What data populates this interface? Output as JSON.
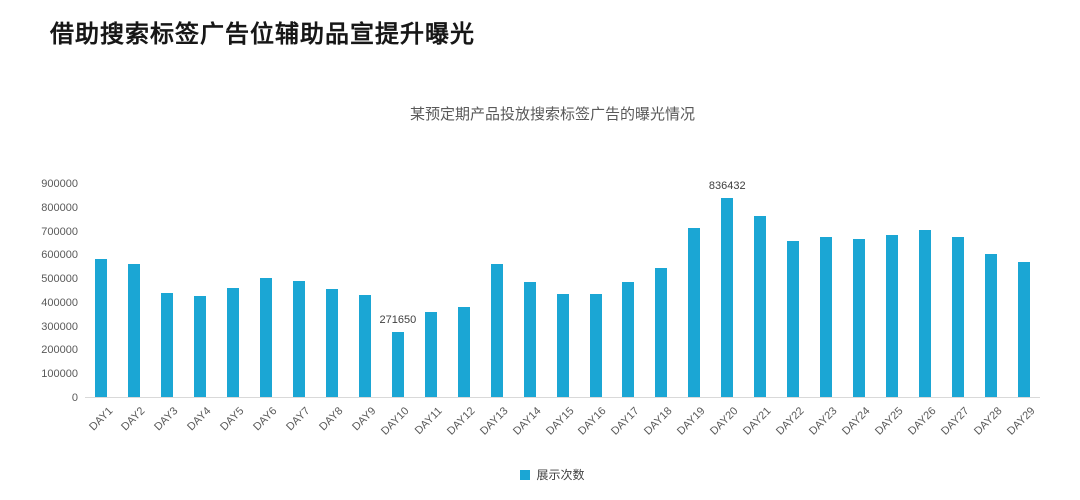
{
  "page": {
    "title": "借助搜索标签广告位辅助品宣提升曝光"
  },
  "chart_data": {
    "type": "bar",
    "title": "某预定期产品投放搜索标签广告的曝光情况",
    "categories": [
      "DAY1",
      "DAY2",
      "DAY3",
      "DAY4",
      "DAY5",
      "DAY6",
      "DAY7",
      "DAY8",
      "DAY9",
      "DAY10",
      "DAY11",
      "DAY12",
      "DAY13",
      "DAY14",
      "DAY15",
      "DAY16",
      "DAY17",
      "DAY18",
      "DAY19",
      "DAY20",
      "DAY21",
      "DAY22",
      "DAY23",
      "DAY24",
      "DAY25",
      "DAY26",
      "DAY27",
      "DAY28",
      "DAY29"
    ],
    "series": [
      {
        "name": "展示次数",
        "color": "#1BA6D4",
        "values": [
          580000,
          558000,
          436000,
          425000,
          457000,
          502000,
          489000,
          456000,
          430000,
          271650,
          356000,
          380000,
          559000,
          482000,
          433000,
          434000,
          482000,
          541000,
          711000,
          836432,
          762000,
          657000,
          675000,
          664000,
          682000,
          702000,
          674000,
          600000,
          566000
        ]
      }
    ],
    "ylim": [
      0,
      900000
    ],
    "yticks": [
      0,
      100000,
      200000,
      300000,
      400000,
      500000,
      600000,
      700000,
      800000,
      900000
    ],
    "data_labels": {
      "DAY10": "271650",
      "DAY20": "836432"
    },
    "xlabel": "",
    "ylabel": "",
    "grid": false,
    "legend_position": "bottom",
    "axis_color": "#d9d9d9",
    "tick_label_color": "#595959"
  }
}
